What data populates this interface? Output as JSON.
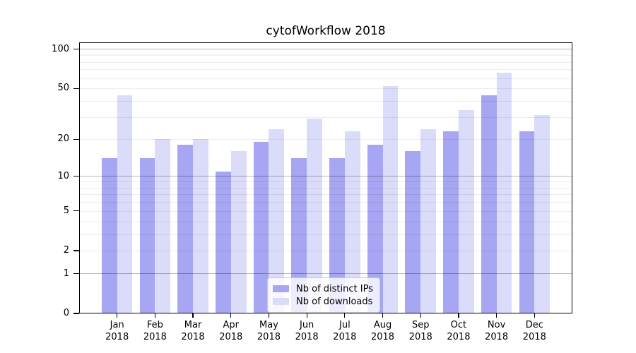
{
  "chart_data": {
    "type": "bar",
    "title": "cytofWorkflow 2018",
    "categories": [
      "Jan",
      "Feb",
      "Mar",
      "Apr",
      "May",
      "Jun",
      "Jul",
      "Aug",
      "Sep",
      "Oct",
      "Nov",
      "Dec"
    ],
    "category_year": "2018",
    "series": [
      {
        "name": "Nb of distinct IPs",
        "color": "#a6a6f2",
        "values": [
          14,
          14,
          18,
          11,
          19,
          14,
          14,
          18,
          16,
          23,
          44,
          23
        ]
      },
      {
        "name": "Nb of downloads",
        "color": "#dbdbfa",
        "values": [
          44,
          20,
          20,
          16,
          24,
          29,
          23,
          52,
          24,
          34,
          66,
          31
        ]
      }
    ],
    "xlabel": "",
    "ylabel": "",
    "yscale": "log1p",
    "ylim": [
      0,
      113
    ],
    "y_ticks": [
      0,
      1,
      2,
      5,
      10,
      20,
      50,
      100
    ],
    "y_minor_gridlines": [
      2,
      3,
      4,
      5,
      6,
      7,
      8,
      9,
      20,
      30,
      40,
      50,
      60,
      70,
      80,
      90
    ],
    "y_major_gridlines": [
      1,
      10,
      100
    ],
    "grid": true,
    "legend_position": "bottom-center"
  },
  "colors": {
    "background": "#ffffff",
    "axis": "#000000",
    "minor_grid": "rgba(0,0,0,0.07)",
    "major_grid": "rgba(0,0,0,0.28)",
    "legend_border": "#cccccc"
  }
}
